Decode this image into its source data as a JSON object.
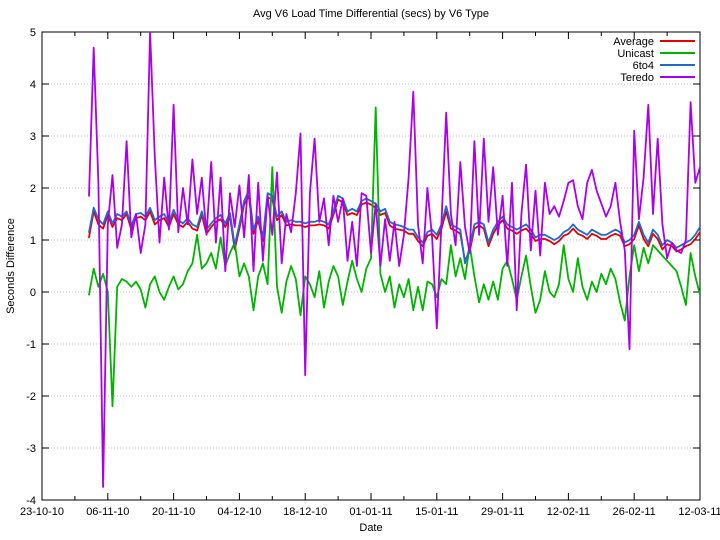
{
  "title": "Avg V6 Load Time Differential (secs) by V6 Type",
  "xlabel": "Date",
  "ylabel": "Seconds Difference",
  "legend": {
    "position": "top-right-inside",
    "entries": [
      {
        "label": "Average",
        "color": "#e60000"
      },
      {
        "label": "Unicast",
        "color": "#00b400"
      },
      {
        "label": "6to4",
        "color": "#1e6bd0"
      },
      {
        "label": "Teredo",
        "color": "#aa00ee"
      }
    ]
  },
  "colors": {
    "average": "#e60000",
    "unicast": "#00b400",
    "sixto4": "#1e6bd0",
    "teredo": "#aa00ee",
    "grid": "#bcbcbc",
    "axis": "#000000",
    "background": "#ffffff"
  },
  "chart_data": {
    "type": "line",
    "title": "Avg V6 Load Time Differential (secs) by V6 Type",
    "xlabel": "Date",
    "ylabel": "Seconds Difference",
    "ylim": [
      -4,
      5
    ],
    "y_ticks": [
      -4,
      -3,
      -2,
      -1,
      0,
      1,
      2,
      3,
      4,
      5
    ],
    "grid": "horizontal dotted lines at integer y values",
    "xlim_days": [
      0,
      140
    ],
    "x_major_tick_days": [
      0,
      14,
      28,
      42,
      56,
      70,
      84,
      98,
      112,
      126,
      140
    ],
    "x_tick_labels": [
      "23-10-10",
      "06-11-10",
      "20-11-10",
      "04-12-10",
      "18-12-10",
      "01-01-11",
      "15-01-11",
      "29-01-11",
      "12-02-11",
      "26-02-11",
      "12-03-11"
    ],
    "x_minor_tick_interval_days": 7,
    "start_day": 10,
    "series": [
      {
        "name": "Average",
        "color": "#e60000",
        "values": [
          1.05,
          1.55,
          1.3,
          1.22,
          1.48,
          1.25,
          1.42,
          1.38,
          1.5,
          1.2,
          1.42,
          1.45,
          1.38,
          1.55,
          1.3,
          1.38,
          1.42,
          1.25,
          1.5,
          1.3,
          1.25,
          1.35,
          1.22,
          1.18,
          1.48,
          1.12,
          1.25,
          1.35,
          1.4,
          1.25,
          1.45,
          0.82,
          1.22,
          1.68,
          1.85,
          1.12,
          1.38,
          0.98,
          1.82,
          1.78,
          1.38,
          1.48,
          1.28,
          1.3,
          1.28,
          1.28,
          1.25,
          1.28,
          1.28,
          1.3,
          1.28,
          1.22,
          1.48,
          1.78,
          1.72,
          1.48,
          1.52,
          1.48,
          1.68,
          1.72,
          1.68,
          1.62,
          1.48,
          1.52,
          1.28,
          1.22,
          1.2,
          1.18,
          1.12,
          1.12,
          0.98,
          0.88,
          1.08,
          1.12,
          1.02,
          1.22,
          1.55,
          1.22,
          1.18,
          1.12,
          0.6,
          0.78,
          1.22,
          1.28,
          1.22,
          0.88,
          1.12,
          1.28,
          1.38,
          1.22,
          1.18,
          1.12,
          1.18,
          1.22,
          1.12,
          0.98,
          1.02,
          1.02,
          0.98,
          0.92,
          0.98,
          1.08,
          1.12,
          1.22,
          1.12,
          1.08,
          1.02,
          1.12,
          1.08,
          1.02,
          1.02,
          1.08,
          1.12,
          1.08,
          0.88,
          0.92,
          1.02,
          1.28,
          1.02,
          0.88,
          1.12,
          1.02,
          0.82,
          0.92,
          0.88,
          0.78,
          0.82,
          0.88,
          0.92,
          1.02,
          1.15
        ]
      },
      {
        "name": "Unicast",
        "color": "#00b400",
        "values": [
          -0.05,
          0.45,
          0.1,
          0.35,
          0.0,
          -2.2,
          0.1,
          0.25,
          0.2,
          0.1,
          0.2,
          0.05,
          -0.3,
          0.15,
          0.3,
          0.0,
          -0.15,
          0.1,
          0.3,
          0.05,
          0.15,
          0.4,
          0.55,
          1.1,
          0.45,
          0.55,
          0.75,
          0.45,
          1.05,
          0.5,
          0.75,
          0.95,
          0.3,
          0.55,
          0.3,
          -0.35,
          0.3,
          0.55,
          0.15,
          2.4,
          0.1,
          -0.4,
          0.2,
          0.5,
          0.25,
          -0.45,
          0.3,
          0.15,
          -0.1,
          0.4,
          -0.3,
          0.2,
          0.5,
          0.3,
          -0.25,
          0.2,
          0.6,
          0.25,
          0.0,
          0.45,
          0.65,
          3.55,
          0.35,
          0.0,
          0.3,
          -0.3,
          0.15,
          -0.1,
          0.25,
          -0.35,
          0.1,
          -0.35,
          0.2,
          0.15,
          -0.1,
          0.25,
          0.15,
          0.9,
          0.3,
          0.65,
          0.25,
          0.9,
          0.3,
          -0.2,
          0.15,
          -0.15,
          0.2,
          -0.15,
          0.45,
          0.6,
          0.25,
          -0.15,
          0.3,
          0.7,
          0.1,
          -0.4,
          -0.15,
          0.4,
          0.0,
          -0.1,
          0.15,
          0.9,
          0.25,
          0.0,
          0.65,
          0.1,
          -0.15,
          0.2,
          0.0,
          0.35,
          0.15,
          0.45,
          0.25,
          -0.2,
          -0.55,
          0.3,
          0.9,
          0.4,
          0.85,
          0.55,
          0.9,
          0.8,
          0.7,
          0.6,
          0.5,
          0.4,
          0.1,
          -0.25,
          0.75,
          0.3,
          -0.05
        ]
      },
      {
        "name": "6to4",
        "color": "#1e6bd0",
        "values": [
          1.15,
          1.62,
          1.4,
          1.3,
          1.55,
          1.32,
          1.5,
          1.45,
          1.55,
          1.28,
          1.5,
          1.52,
          1.45,
          1.62,
          1.38,
          1.45,
          1.5,
          1.32,
          1.58,
          1.38,
          1.32,
          1.42,
          1.3,
          1.25,
          1.55,
          1.2,
          1.32,
          1.42,
          1.48,
          1.32,
          1.52,
          0.9,
          1.3,
          1.75,
          1.95,
          1.2,
          1.45,
          1.05,
          1.9,
          1.85,
          1.45,
          1.55,
          1.35,
          1.38,
          1.35,
          1.35,
          1.32,
          1.35,
          1.35,
          1.38,
          1.35,
          1.3,
          1.55,
          1.85,
          1.8,
          1.55,
          1.6,
          1.55,
          1.75,
          1.8,
          1.75,
          1.7,
          1.55,
          1.6,
          1.35,
          1.3,
          1.28,
          1.25,
          1.2,
          1.2,
          1.05,
          0.95,
          1.15,
          1.2,
          1.1,
          1.3,
          1.65,
          1.3,
          1.25,
          1.2,
          0.55,
          0.85,
          1.3,
          1.35,
          1.3,
          0.95,
          1.2,
          1.35,
          1.45,
          1.3,
          1.25,
          1.2,
          1.25,
          1.3,
          1.2,
          1.05,
          1.1,
          1.1,
          1.05,
          1.0,
          1.05,
          1.15,
          1.2,
          1.3,
          1.2,
          1.15,
          1.1,
          1.2,
          1.15,
          1.1,
          1.1,
          1.15,
          1.2,
          1.15,
          0.95,
          1.0,
          1.1,
          1.35,
          1.1,
          0.95,
          1.2,
          1.1,
          0.9,
          1.0,
          0.95,
          0.85,
          0.9,
          0.95,
          1.0,
          1.1,
          1.25
        ]
      },
      {
        "name": "Teredo",
        "color": "#aa00ee",
        "values": [
          1.85,
          4.7,
          2.1,
          -3.75,
          1.3,
          2.25,
          0.85,
          1.3,
          2.9,
          1.05,
          1.5,
          0.75,
          1.3,
          5.0,
          2.6,
          0.95,
          2.2,
          1.2,
          3.6,
          1.15,
          2.0,
          1.3,
          2.55,
          1.5,
          2.2,
          1.1,
          2.5,
          0.95,
          2.2,
          0.4,
          1.9,
          1.25,
          2.05,
          1.05,
          2.25,
          0.4,
          2.1,
          0.6,
          1.85,
          1.1,
          2.3,
          0.55,
          1.5,
          1.15,
          1.9,
          3.05,
          -1.6,
          1.9,
          2.95,
          1.35,
          1.8,
          0.9,
          1.85,
          1.35,
          1.8,
          0.6,
          1.35,
          0.5,
          1.9,
          1.85,
          0.75,
          1.7,
          0.5,
          1.4,
          0.6,
          1.35,
          0.5,
          1.1,
          2.2,
          3.85,
          1.3,
          0.55,
          2.0,
          1.05,
          -0.7,
          1.35,
          3.45,
          1.5,
          0.9,
          2.5,
          1.25,
          0.75,
          2.9,
          1.1,
          2.95,
          1.35,
          2.4,
          1.1,
          1.85,
          0.5,
          2.1,
          -0.35,
          1.5,
          2.45,
          0.8,
          1.95,
          0.7,
          2.1,
          1.5,
          1.65,
          1.45,
          1.75,
          2.1,
          2.15,
          1.65,
          1.4,
          2.1,
          2.35,
          1.95,
          1.7,
          1.45,
          1.65,
          2.1,
          1.35,
          0.8,
          -1.1,
          3.1,
          1.4,
          2.2,
          3.6,
          1.5,
          2.95,
          1.3,
          0.65,
          0.95,
          0.8,
          0.75,
          1.0,
          3.65,
          2.1,
          2.4
        ]
      }
    ]
  }
}
